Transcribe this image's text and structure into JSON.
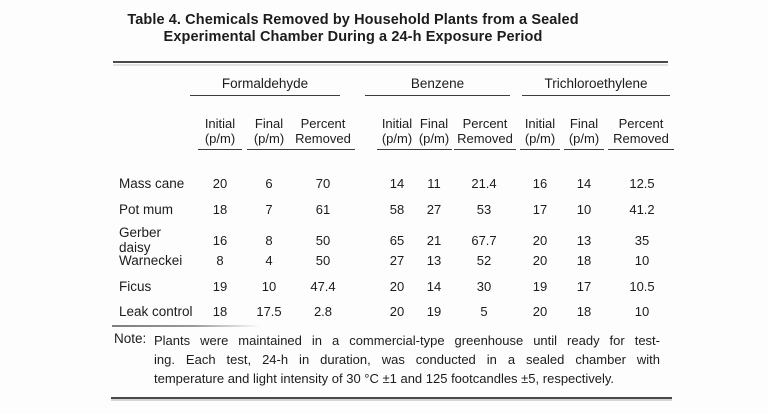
{
  "title": {
    "line1": "Table 4. Chemicals Removed by Household Plants from a Sealed",
    "line2": "Experimental Chamber During a 24-h Exposure Period"
  },
  "table": {
    "group_headers": [
      "Formaldehyde",
      "Benzene",
      "Trichloroethylene"
    ],
    "sub_headers": {
      "initial": {
        "line1": "Initial",
        "line2": "(p/m)"
      },
      "final": {
        "line1": "Final",
        "line2": "(p/m)"
      },
      "percent": {
        "line1": "Percent",
        "line2": "Removed"
      }
    },
    "rows": [
      {
        "plant": "Mass cane",
        "formaldehyde": {
          "initial": "20",
          "final": "6",
          "percent": "70"
        },
        "benzene": {
          "initial": "14",
          "final": "11",
          "percent": "21.4"
        },
        "trichloroethylene": {
          "initial": "16",
          "final": "14",
          "percent": "12.5"
        }
      },
      {
        "plant": "Pot mum",
        "formaldehyde": {
          "initial": "18",
          "final": "7",
          "percent": "61"
        },
        "benzene": {
          "initial": "58",
          "final": "27",
          "percent": "53"
        },
        "trichloroethylene": {
          "initial": "17",
          "final": "10",
          "percent": "41.2"
        }
      },
      {
        "plant": "Gerber daisy",
        "formaldehyde": {
          "initial": "16",
          "final": "8",
          "percent": "50"
        },
        "benzene": {
          "initial": "65",
          "final": "21",
          "percent": "67.7"
        },
        "trichloroethylene": {
          "initial": "20",
          "final": "13",
          "percent": "35"
        }
      },
      {
        "plant": "Warneckei",
        "formaldehyde": {
          "initial": "8",
          "final": "4",
          "percent": "50"
        },
        "benzene": {
          "initial": "27",
          "final": "13",
          "percent": "52"
        },
        "trichloroethylene": {
          "initial": "20",
          "final": "18",
          "percent": "10"
        }
      },
      {
        "plant": "Ficus",
        "formaldehyde": {
          "initial": "19",
          "final": "10",
          "percent": "47.4"
        },
        "benzene": {
          "initial": "20",
          "final": "14",
          "percent": "30"
        },
        "trichloroethylene": {
          "initial": "19",
          "final": "17",
          "percent": "10.5"
        }
      },
      {
        "plant": "Leak control",
        "formaldehyde": {
          "initial": "18",
          "final": "17.5",
          "percent": "2.8"
        },
        "benzene": {
          "initial": "20",
          "final": "19",
          "percent": "5"
        },
        "trichloroethylene": {
          "initial": "20",
          "final": "18",
          "percent": "10"
        }
      }
    ]
  },
  "note": {
    "label": "Note:",
    "lines": [
      "Plants were maintained in a commercial-type greenhouse until ready for test-",
      "ing. Each test, 24-h in duration, was conducted in a sealed chamber with",
      "temperature and light intensity of 30 °C ±1 and 125 footcandles ±5, respectively."
    ]
  },
  "colors": {
    "background": "#fdfdfd",
    "text": "#1c1c1c",
    "rule": "#4a4a4a",
    "faded_rule": "#8a8a8a"
  }
}
